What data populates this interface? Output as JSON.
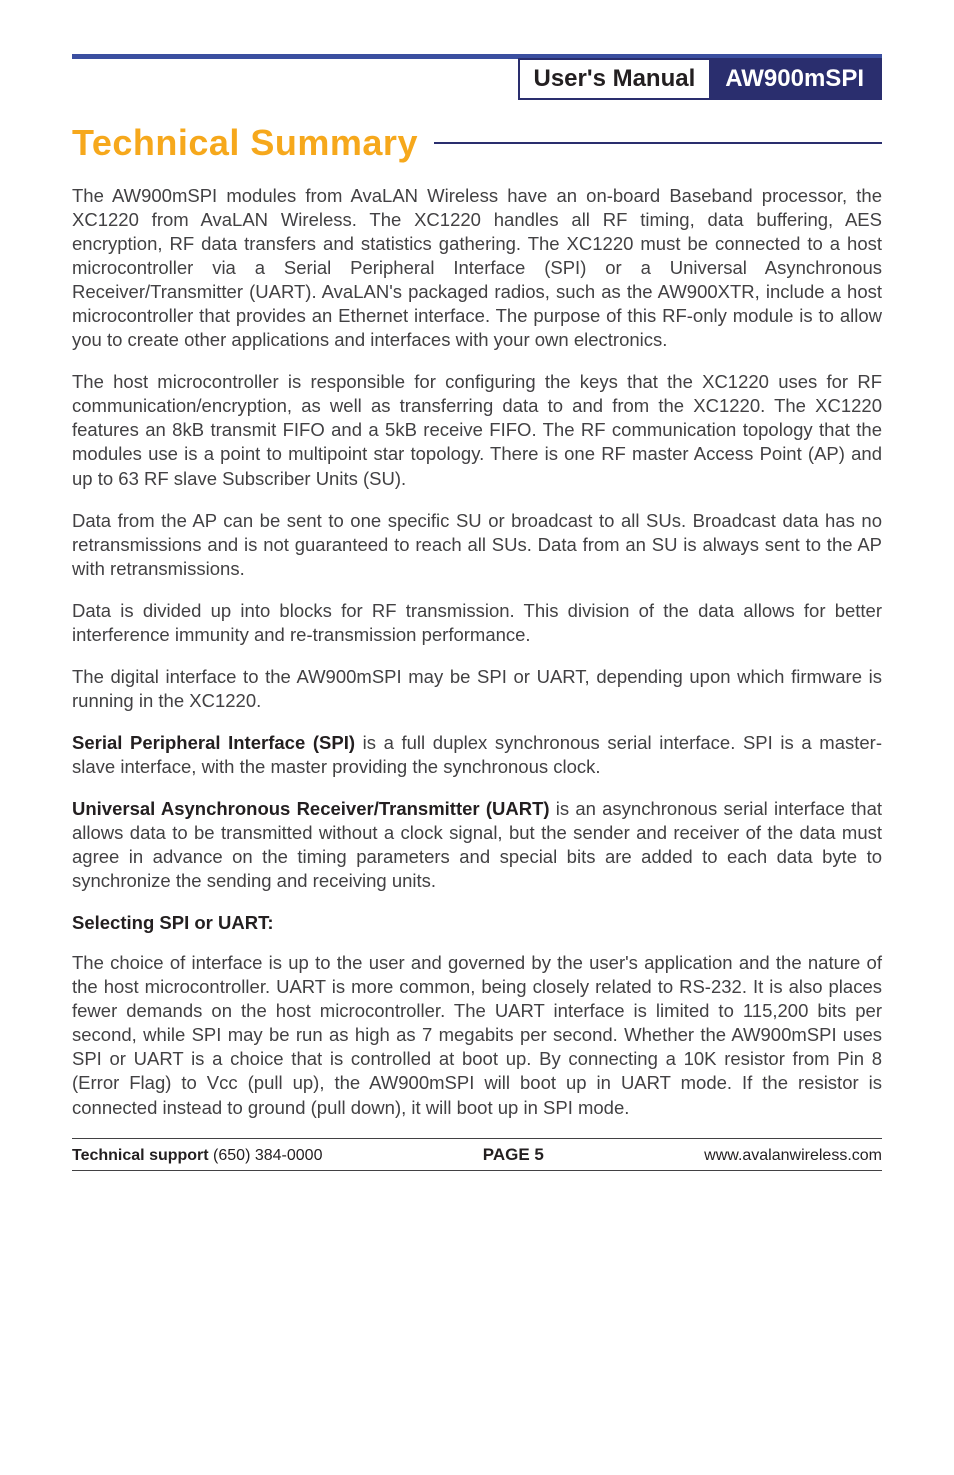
{
  "header": {
    "left_label": "User's Manual",
    "right_label": "AW900mSPI"
  },
  "section_title": "Technical Summary",
  "paragraphs": {
    "p1": "The AW900mSPI modules from AvaLAN Wireless have an on-board Baseband processor, the XC1220 from AvaLAN Wireless.  The XC1220 handles all RF timing, data buffering, AES encryption, RF data transfers and statistics gathering. The XC1220 must be connected to a host microcontroller via a Serial Peripheral Interface (SPI) or a Universal Asynchronous Receiver/Transmitter (UART). AvaLAN's packaged radios, such as the AW900XTR, include a host microcontroller that provides an Ethernet interface. The purpose of this RF-only module is to allow you to create other applications and interfaces with your own electronics.",
    "p2": "The host microcontroller is responsible for configuring the keys that the XC1220 uses for RF communication/encryption, as well as transferring data to and from the XC1220. The XC1220 features an 8kB transmit FIFO and a 5kB receive FIFO. The RF communication topology that the modules use is a point to multipoint star topology. There is one RF master Access Point (AP) and up to 63 RF slave Subscriber Units (SU).",
    "p3": "Data from the AP can be sent to one specific SU or broadcast to all SUs.  Broadcast data has no retransmissions and is not guaranteed to reach all SUs.  Data from an SU is always sent to the AP with retransmissions.",
    "p4": "Data is divided up into blocks for RF transmission.  This division of the data allows for better interference immunity and re-transmission performance.",
    "p5": "The digital interface to the AW900mSPI may be SPI or UART, depending upon which firmware is running in the XC1220.",
    "p6_lead": "Serial Peripheral Interface (SPI)",
    "p6_rest": " is a full duplex synchronous serial interface. SPI is a master-slave interface, with the master providing the synchronous clock.",
    "p7_lead": "Universal Asynchronous Receiver/Transmitter (UART)",
    "p7_rest": " is an asynchronous serial interface that allows data to be transmitted without a clock signal, but the sender and receiver of the data must agree in advance on the timing parameters and special bits are added to each data byte to synchronize the sending and receiving units.",
    "p8_label": "Selecting SPI or UART:",
    "p9": "The choice of interface is up to the user and governed by the user's application and the nature of the host microcontroller. UART is more common, being closely related to RS-232. It is also places fewer demands on the host microcontroller. The UART interface is limited to 115,200 bits per second, while SPI may be run as high as 7 megabits per second. Whether the AW900mSPI uses SPI or UART is a choice that is controlled at boot up. By connecting a 10K resistor from Pin 8 (Error Flag) to Vcc (pull up), the AW900mSPI will boot up in UART mode. If the resistor is connected instead to ground (pull down), it will boot up in SPI mode."
  },
  "footer": {
    "support_label": "Technical support",
    "support_phone": " (650) 384-0000",
    "page_label": "PAGE 5",
    "url": "www.avalanwireless.com"
  },
  "colors": {
    "accent_blue": "#2a2e6e",
    "rule_blue": "#3b4fa0",
    "title_gold": "#f6a81c",
    "body_text": "#424143",
    "ink": "#231f20",
    "white": "#ffffff"
  }
}
